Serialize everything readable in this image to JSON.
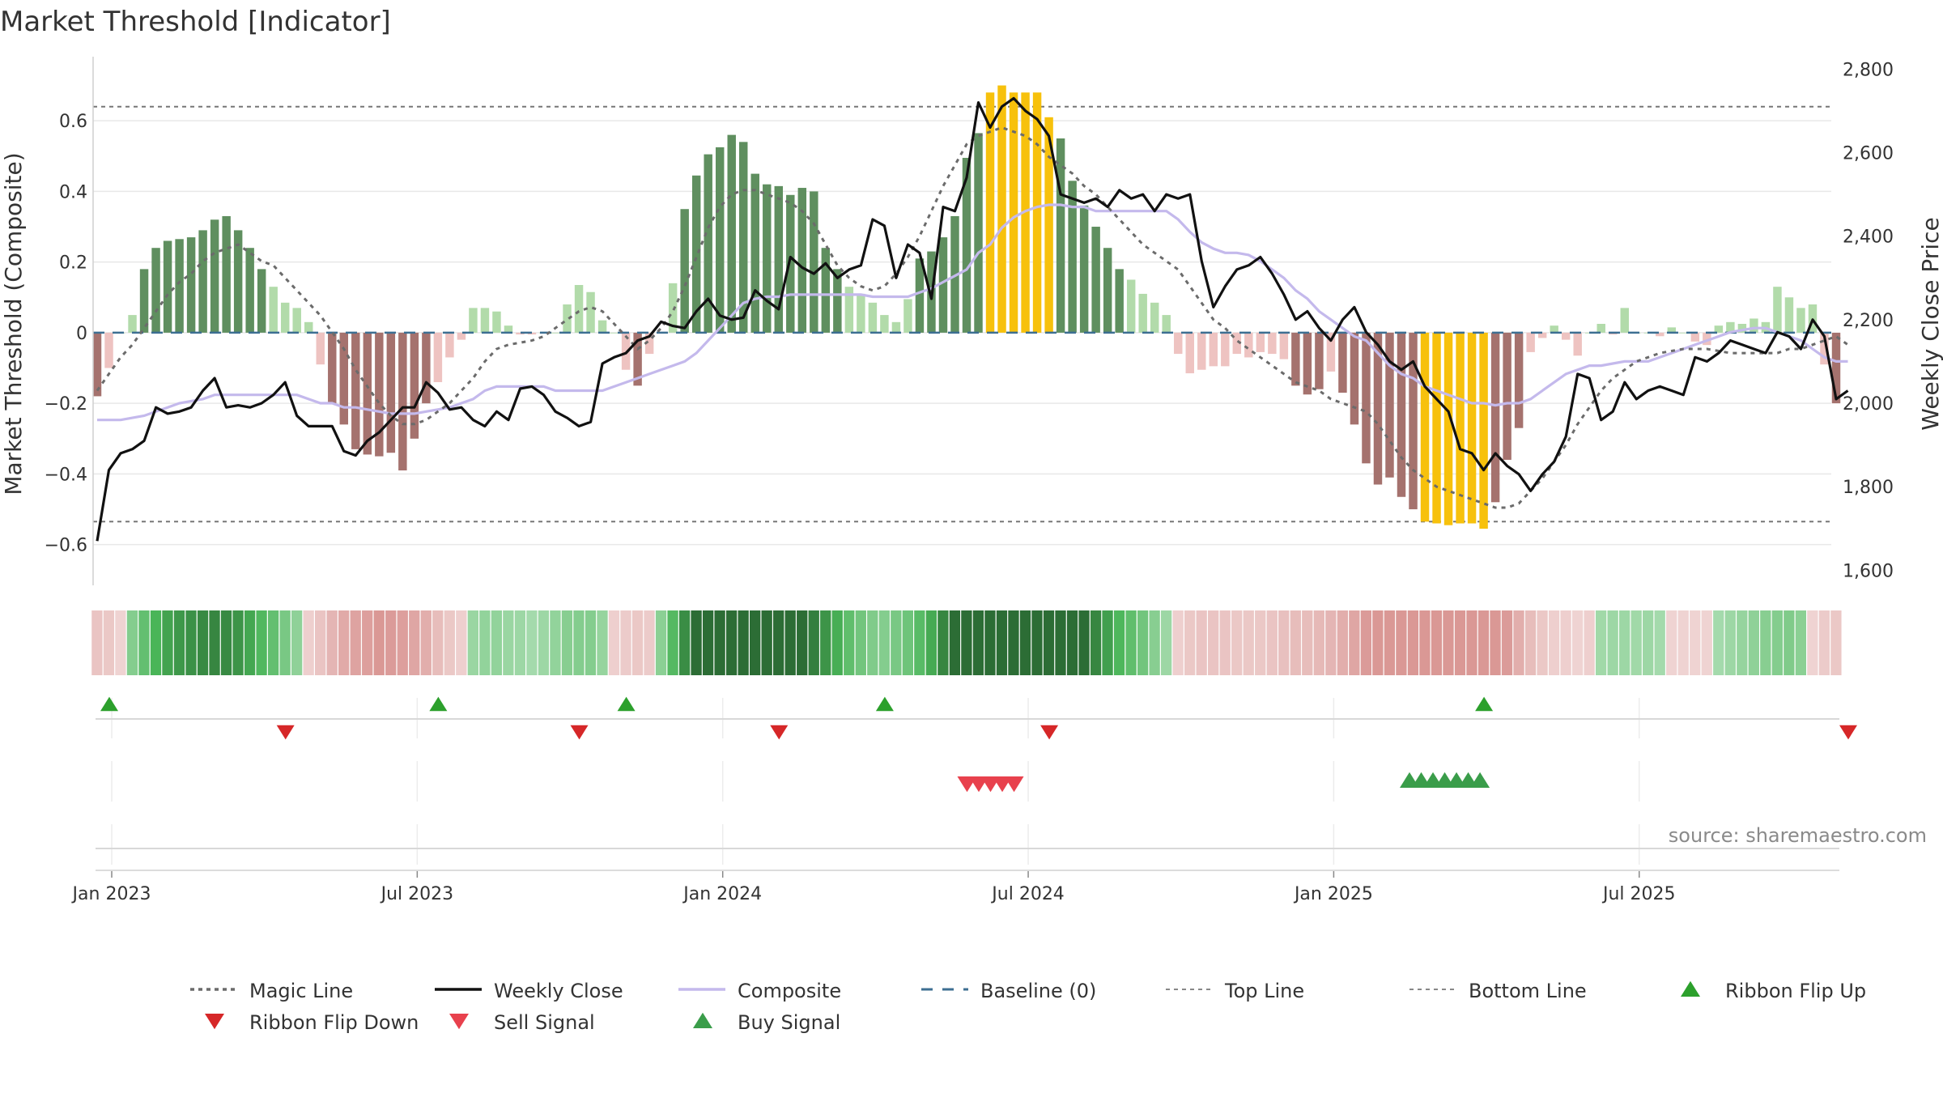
{
  "chart_data": {
    "type": "bar",
    "title": "Market Threshold [Indicator]",
    "ylabel_left": "Market Threshold (Composite)",
    "ylabel_right": "Weekly Close Price",
    "ylim_left": [
      -0.72,
      0.77
    ],
    "ylim_right": [
      1560,
      2820
    ],
    "yticks_left": [
      {
        "v": -0.6,
        "label": "−0.6"
      },
      {
        "v": -0.4,
        "label": "−0.4"
      },
      {
        "v": -0.2,
        "label": "−0.2"
      },
      {
        "v": 0,
        "label": "0"
      },
      {
        "v": 0.2,
        "label": "0.2"
      },
      {
        "v": 0.4,
        "label": "0.4"
      },
      {
        "v": 0.6,
        "label": "0.6"
      }
    ],
    "yticks_right": [
      {
        "v": 1600,
        "label": "1,600"
      },
      {
        "v": 1800,
        "label": "1,800"
      },
      {
        "v": 2000,
        "label": "2,000"
      },
      {
        "v": 2200,
        "label": "2,200"
      },
      {
        "v": 2400,
        "label": "2,400"
      },
      {
        "v": 2600,
        "label": "2,600"
      },
      {
        "v": 2800,
        "label": "2,800"
      }
    ],
    "xticks": [
      {
        "week": 1,
        "label": "Jan 2023"
      },
      {
        "week": 27,
        "label": "Jul 2023"
      },
      {
        "week": 53,
        "label": "Jan 2024"
      },
      {
        "week": 79,
        "label": "Jul 2024"
      },
      {
        "week": 105,
        "label": "Jan 2025"
      },
      {
        "week": 131,
        "label": "Jul 2025"
      }
    ],
    "top_line": 0.64,
    "bottom_line": -0.535,
    "baseline": 0,
    "composite_bars": [
      -0.18,
      -0.1,
      0.0,
      0.05,
      0.18,
      0.24,
      0.26,
      0.265,
      0.27,
      0.29,
      0.32,
      0.33,
      0.29,
      0.24,
      0.18,
      0.13,
      0.085,
      0.07,
      0.03,
      -0.09,
      -0.2,
      -0.26,
      -0.33,
      -0.345,
      -0.35,
      -0.34,
      -0.39,
      -0.3,
      -0.2,
      -0.14,
      -0.07,
      -0.02,
      0.07,
      0.07,
      0.06,
      0.02,
      -0.005,
      -0.005,
      0.0,
      0.0,
      0.08,
      0.135,
      0.115,
      0.035,
      0.0,
      -0.105,
      -0.15,
      -0.06,
      0.0,
      0.14,
      0.35,
      0.445,
      0.505,
      0.525,
      0.56,
      0.54,
      0.45,
      0.42,
      0.415,
      0.39,
      0.41,
      0.4,
      0.24,
      0.18,
      0.13,
      0.11,
      0.085,
      0.05,
      0.03,
      0.095,
      0.21,
      0.23,
      0.27,
      0.33,
      0.495,
      0.565,
      0.68,
      0.7,
      0.68,
      0.68,
      0.68,
      0.61,
      0.55,
      0.43,
      0.36,
      0.3,
      0.24,
      0.18,
      0.15,
      0.11,
      0.085,
      0.05,
      -0.06,
      -0.115,
      -0.105,
      -0.095,
      -0.095,
      -0.06,
      -0.07,
      -0.055,
      -0.06,
      -0.075,
      -0.15,
      -0.175,
      -0.16,
      -0.11,
      -0.17,
      -0.26,
      -0.37,
      -0.43,
      -0.41,
      -0.465,
      -0.5,
      -0.535,
      -0.54,
      -0.545,
      -0.54,
      -0.54,
      -0.555,
      -0.48,
      -0.36,
      -0.27,
      -0.055,
      -0.015,
      0.02,
      -0.02,
      -0.065,
      0.0,
      0.025,
      -0.005,
      0.07,
      0.0,
      0.0,
      -0.01,
      0.015,
      0.0,
      -0.025,
      -0.035,
      0.02,
      0.03,
      0.025,
      0.04,
      0.03,
      0.13,
      0.1,
      0.07,
      0.08,
      -0.09,
      -0.2
    ],
    "weekly_close": [
      1670,
      1840,
      1880,
      1890,
      1910,
      1990,
      1975,
      1980,
      1990,
      2030,
      2060,
      1990,
      1995,
      1990,
      2000,
      2020,
      2050,
      1970,
      1945,
      1945,
      1945,
      1885,
      1875,
      1910,
      1930,
      1960,
      1990,
      1990,
      2050,
      2025,
      1985,
      1990,
      1960,
      1945,
      1980,
      1960,
      2035,
      2040,
      2020,
      1980,
      1965,
      1945,
      1955,
      2095,
      2110,
      2120,
      2150,
      2160,
      2195,
      2185,
      2180,
      2220,
      2250,
      2210,
      2200,
      2205,
      2270,
      2245,
      2225,
      2350,
      2325,
      2310,
      2335,
      2300,
      2320,
      2330,
      2440,
      2425,
      2300,
      2380,
      2360,
      2250,
      2470,
      2460,
      2540,
      2720,
      2660,
      2710,
      2730,
      2700,
      2680,
      2640,
      2500,
      2490,
      2480,
      2490,
      2470,
      2510,
      2490,
      2500,
      2460,
      2500,
      2490,
      2500,
      2340,
      2230,
      2280,
      2320,
      2330,
      2350,
      2310,
      2260,
      2200,
      2220,
      2180,
      2150,
      2200,
      2230,
      2170,
      2140,
      2100,
      2080,
      2100,
      2040,
      2010,
      1980,
      1890,
      1880,
      1840,
      1880,
      1850,
      1830,
      1790,
      1830,
      1860,
      1920,
      2070,
      2060,
      1960,
      1980,
      2050,
      2010,
      2030,
      2040,
      2030,
      2020,
      2110,
      2100,
      2120,
      2150,
      2140,
      2130,
      2120,
      2170,
      2160,
      2130,
      2200,
      2160,
      2010,
      2030
    ],
    "composite_line": [
      1960,
      1960,
      1960,
      1965,
      1970,
      1980,
      1990,
      2000,
      2005,
      2010,
      2020,
      2020,
      2020,
      2020,
      2020,
      2020,
      2020,
      2020,
      2010,
      2000,
      2000,
      1990,
      1990,
      1985,
      1980,
      1975,
      1975,
      1975,
      1980,
      1985,
      1990,
      2000,
      2010,
      2030,
      2040,
      2040,
      2040,
      2040,
      2040,
      2030,
      2030,
      2030,
      2030,
      2030,
      2040,
      2050,
      2060,
      2070,
      2080,
      2090,
      2100,
      2120,
      2150,
      2180,
      2210,
      2240,
      2250,
      2255,
      2255,
      2260,
      2260,
      2260,
      2260,
      2260,
      2260,
      2260,
      2255,
      2255,
      2255,
      2255,
      2265,
      2275,
      2290,
      2305,
      2320,
      2360,
      2380,
      2420,
      2445,
      2460,
      2470,
      2475,
      2475,
      2470,
      2470,
      2460,
      2460,
      2460,
      2460,
      2460,
      2460,
      2460,
      2440,
      2410,
      2385,
      2370,
      2360,
      2360,
      2355,
      2340,
      2320,
      2300,
      2270,
      2250,
      2220,
      2200,
      2180,
      2160,
      2150,
      2120,
      2090,
      2070,
      2060,
      2040,
      2030,
      2020,
      2010,
      2000,
      2000,
      1995,
      2000,
      2000,
      2010,
      2030,
      2050,
      2070,
      2080,
      2090,
      2090,
      2095,
      2100,
      2100,
      2100,
      2110,
      2120,
      2130,
      2140,
      2150,
      2160,
      2170,
      2175,
      2180,
      2180,
      2170,
      2160,
      2150,
      2130,
      2110,
      2100,
      2100
    ],
    "magic_line": [
      2030,
      2070,
      2110,
      2140,
      2180,
      2220,
      2260,
      2290,
      2310,
      2340,
      2360,
      2370,
      2380,
      2360,
      2340,
      2330,
      2300,
      2270,
      2240,
      2210,
      2170,
      2130,
      2080,
      2040,
      2000,
      1970,
      1950,
      1950,
      1960,
      1980,
      2000,
      2030,
      2060,
      2100,
      2130,
      2140,
      2145,
      2150,
      2160,
      2180,
      2200,
      2220,
      2230,
      2220,
      2190,
      2160,
      2130,
      2150,
      2180,
      2220,
      2280,
      2350,
      2420,
      2470,
      2500,
      2510,
      2510,
      2500,
      2490,
      2480,
      2460,
      2430,
      2380,
      2330,
      2300,
      2280,
      2270,
      2280,
      2310,
      2350,
      2400,
      2460,
      2520,
      2570,
      2620,
      2640,
      2650,
      2660,
      2650,
      2640,
      2620,
      2590,
      2570,
      2550,
      2520,
      2500,
      2470,
      2440,
      2410,
      2380,
      2360,
      2340,
      2320,
      2280,
      2240,
      2200,
      2180,
      2150,
      2130,
      2110,
      2090,
      2070,
      2050,
      2040,
      2030,
      2010,
      2000,
      1990,
      1980,
      1950,
      1910,
      1870,
      1840,
      1820,
      1800,
      1790,
      1780,
      1770,
      1760,
      1750,
      1750,
      1760,
      1790,
      1820,
      1860,
      1900,
      1950,
      1990,
      2030,
      2060,
      2080,
      2100,
      2110,
      2120,
      2125,
      2130,
      2130,
      2130,
      2125,
      2120,
      2120,
      2120,
      2120,
      2120,
      2130,
      2130,
      2140,
      2150,
      2160,
      2140
    ],
    "ribbon_flip_up_weeks": [
      1,
      29,
      45,
      67,
      118
    ],
    "ribbon_flip_down_weeks": [
      16,
      41,
      58,
      81,
      149
    ],
    "sell_signal_weeks": [
      74,
      75,
      76,
      77,
      78
    ],
    "buy_signal_weeks": [
      112,
      113,
      114,
      115,
      116,
      117,
      118
    ],
    "legend": [
      {
        "label": "Magic Line",
        "style": "dotted",
        "color": "#6b6b6b"
      },
      {
        "label": "Weekly Close",
        "style": "solid",
        "color": "#111111"
      },
      {
        "label": "Composite",
        "style": "solid",
        "color": "#c4b9ec"
      },
      {
        "label": "Baseline (0)",
        "style": "dashed",
        "color": "#3d6f92"
      },
      {
        "label": "Top Line",
        "style": "dashed-thin",
        "color": "#888888"
      },
      {
        "label": "Bottom Line",
        "style": "dashed-thin",
        "color": "#888888"
      },
      {
        "label": "Ribbon Flip Up",
        "style": "triangle-up",
        "color": "#2ca02c"
      },
      {
        "label": "Ribbon Flip Down",
        "style": "triangle-down",
        "color": "#d62728"
      },
      {
        "label": "Sell Signal",
        "style": "triangle-down",
        "color": "#e8414d"
      },
      {
        "label": "Buy Signal",
        "style": "triangle-up",
        "color": "#3a9d4a"
      }
    ],
    "colors": {
      "strong_pos": "#5f8f5f",
      "weak_pos": "#b2dbaa",
      "strong_neg": "#a5726e",
      "weak_neg": "#eec3c1",
      "extreme": "#f7c10c",
      "close": "#111111",
      "composite": "#c4b9ec",
      "magic": "#6b6b6b",
      "baseline": "#3d6f92",
      "grid": "#e8e8e8"
    },
    "source": "source: sharemaestro.com"
  }
}
